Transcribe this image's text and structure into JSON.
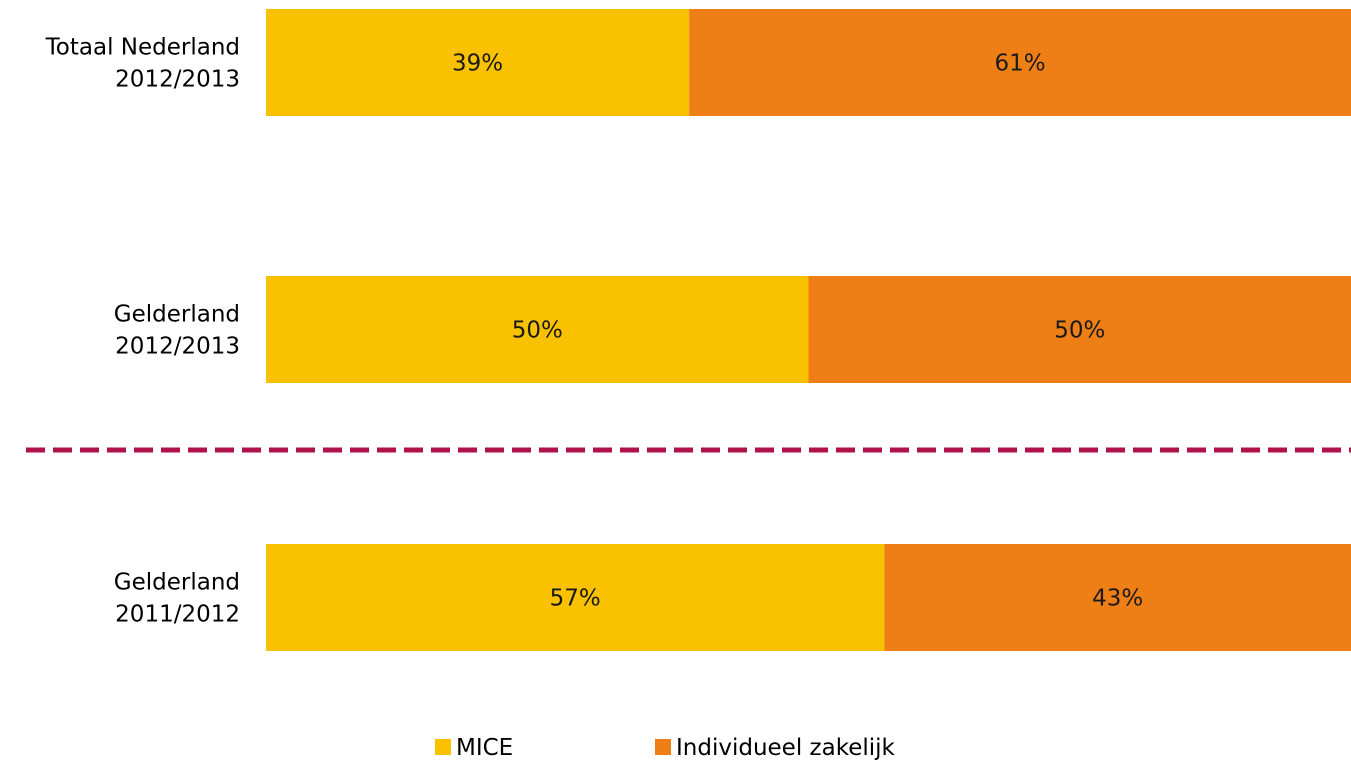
{
  "chart_data": {
    "type": "bar",
    "orientation": "horizontal",
    "stacked": "percent",
    "categories": [
      [
        "Totaal Nederland",
        "2012/2013"
      ],
      [
        "Gelderland",
        "2012/2013"
      ],
      [
        "Gelderland",
        "2011/2012"
      ]
    ],
    "series": [
      {
        "name": "MICE",
        "color": "#F9C100",
        "values": [
          39,
          50,
          57
        ],
        "labels": [
          "39%",
          "50%",
          "57%"
        ]
      },
      {
        "name": "Individueel zakelijk",
        "color": "#EE7F16",
        "values": [
          61,
          50,
          43
        ],
        "labels": [
          "61%",
          "50%",
          "43%"
        ]
      }
    ],
    "xlim": [
      0,
      100
    ],
    "grid": false,
    "legend_position": "bottom",
    "separator": {
      "after_category_index": 1,
      "style": "dashed",
      "color": "#B0124A"
    }
  }
}
